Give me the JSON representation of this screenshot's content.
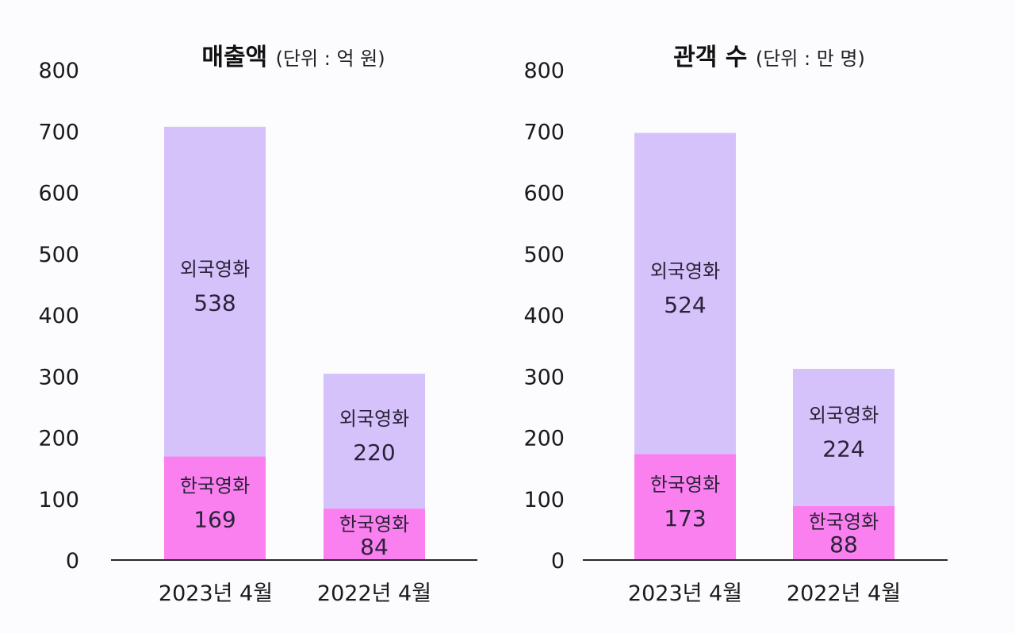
{
  "chart_data": [
    {
      "type": "bar",
      "stacked": true,
      "title": "매출액",
      "unit_label": "(단위 : 억 원)",
      "categories": [
        "2023년 4월",
        "2022년 4월"
      ],
      "ylim": [
        0,
        800
      ],
      "yticks": [
        "0",
        "100",
        "200",
        "300",
        "400",
        "500",
        "600",
        "700",
        "800"
      ],
      "series": [
        {
          "name": "한국영화",
          "values": [
            169,
            84
          ],
          "color": "#fb80ef"
        },
        {
          "name": "외국영화",
          "values": [
            538,
            220
          ],
          "color": "#d5c2fb"
        }
      ]
    },
    {
      "type": "bar",
      "stacked": true,
      "title": "관객 수",
      "unit_label": "(단위 : 만 명)",
      "categories": [
        "2023년 4월",
        "2022년 4월"
      ],
      "ylim": [
        0,
        800
      ],
      "yticks": [
        "0",
        "100",
        "200",
        "300",
        "400",
        "500",
        "600",
        "700",
        "800"
      ],
      "series": [
        {
          "name": "한국영화",
          "values": [
            173,
            88
          ],
          "color": "#fb80ef"
        },
        {
          "name": "외국영화",
          "values": [
            524,
            224
          ],
          "color": "#d5c2fb"
        }
      ]
    }
  ]
}
